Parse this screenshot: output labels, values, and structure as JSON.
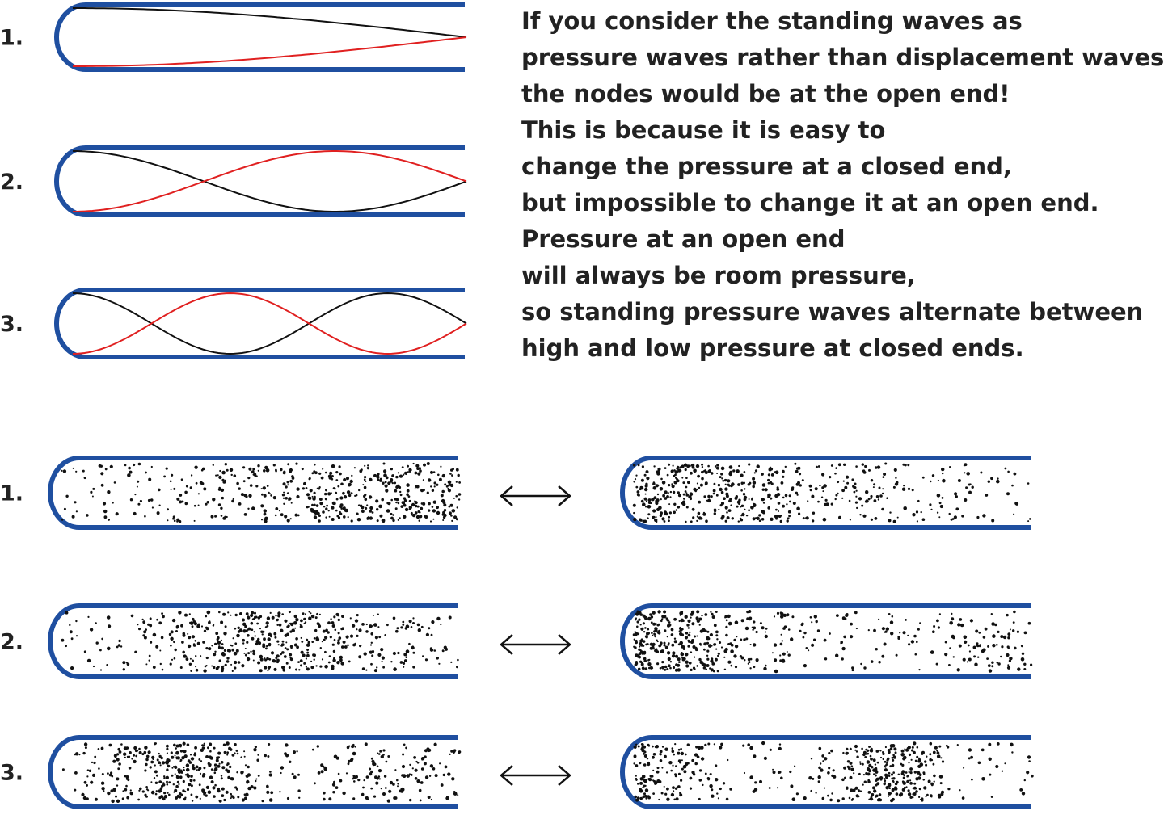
{
  "top_diagrams": [
    {
      "label": "1."
    },
    {
      "label": "2."
    },
    {
      "label": "3."
    }
  ],
  "explanation": {
    "lines": [
      "If you consider the standing waves as",
      "pressure waves rather than displacement waves,",
      "the nodes would be at the open end!",
      "This is because it is easy to",
      "change the pressure at a closed end,",
      "but impossible to change it at an open end.",
      "Pressure at an open end",
      "will always be room pressure,",
      "so standing pressure waves alternate between",
      "high and low pressure at closed ends."
    ]
  },
  "bottom_diagrams": [
    {
      "label": "1."
    },
    {
      "label": "2."
    },
    {
      "label": "3."
    }
  ]
}
